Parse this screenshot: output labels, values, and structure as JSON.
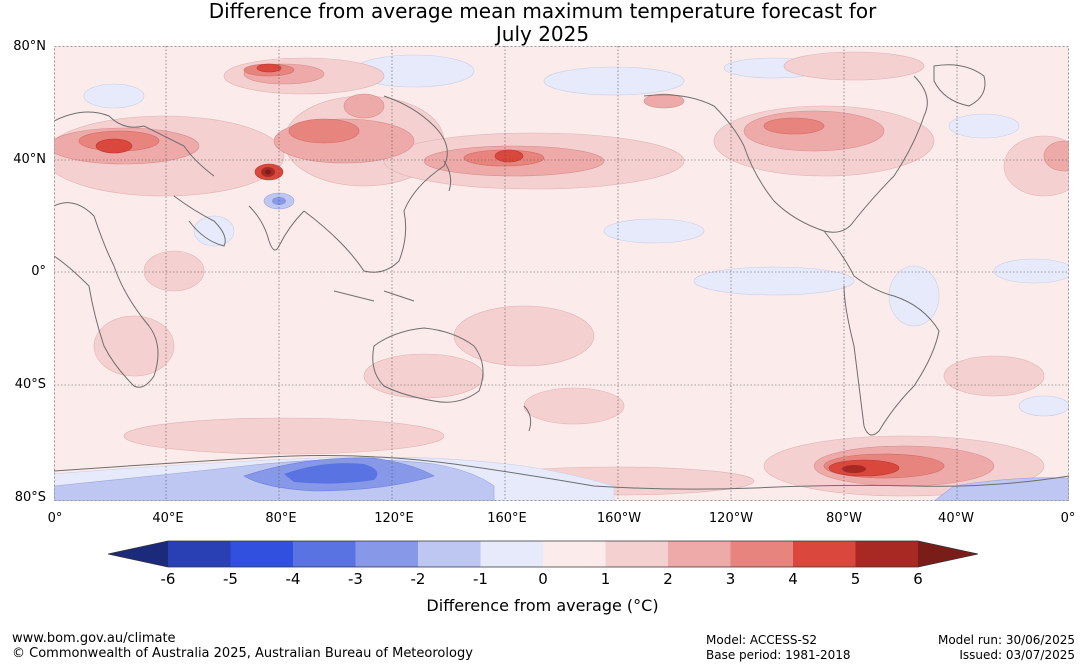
{
  "title_line1": "Difference from average mean maximum temperature forecast for",
  "title_line2": "July 2025",
  "map": {
    "latitude_labels": [
      "80°N",
      "40°N",
      "0°",
      "40°S",
      "80°S"
    ],
    "longitude_labels": [
      "0°",
      "40°E",
      "80°E",
      "120°E",
      "160°E",
      "160°W",
      "120°W",
      "80°W",
      "40°W",
      "0°"
    ],
    "gridline_style": "dotted"
  },
  "colorbar": {
    "ticks": [
      "-6",
      "-5",
      "-4",
      "-3",
      "-2",
      "-1",
      "0",
      "1",
      "2",
      "3",
      "4",
      "5",
      "6"
    ],
    "label": "Difference from average (°C)",
    "colors": {
      "below_-6": "#1b2a7a",
      "-6_-5": "#2940b4",
      "-5_-4": "#3150e0",
      "-4_-3": "#5a73e2",
      "-3_-2": "#8798e8",
      "-2_-1": "#bec6f2",
      "-1_0": "#e6eafa",
      "0_1": "#fcebeb",
      "1_2": "#f5d0d0",
      "2_3": "#edaaa8",
      "3_4": "#e8847e",
      "4_5": "#d9473d",
      "5_6": "#a82924",
      "above_6": "#7a1c18"
    }
  },
  "footer": {
    "website": "www.bom.gov.au/climate",
    "copyright": "© Commonwealth of Australia 2025, Australian Bureau of Meteorology",
    "model": "Model: ACCESS-S2",
    "base_period": "Base period: 1981-2018",
    "model_run": "Model run: 30/06/2025",
    "issued": "Issued: 03/07/2025"
  }
}
